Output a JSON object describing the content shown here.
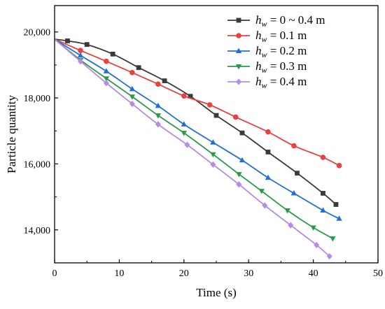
{
  "chart_data": {
    "type": "line",
    "title": "",
    "xlabel": "Time (s)",
    "ylabel": "Particle quantity",
    "xlim": [
      0,
      50
    ],
    "ylim": [
      13000,
      20800
    ],
    "x_ticks": [
      "0",
      "10",
      "20",
      "30",
      "40",
      "50"
    ],
    "x_tick_values": [
      0,
      10,
      20,
      30,
      40,
      50
    ],
    "y_ticks": [
      "14,000",
      "16,000",
      "18,000",
      "20,000"
    ],
    "y_tick_values": [
      14000,
      16000,
      18000,
      20000
    ],
    "grid": false,
    "legend_position": "top-right",
    "series": [
      {
        "name": "0 ~ 0.4 m",
        "legend_var": "h",
        "legend_sub": "w",
        "legend_eq": " =  ",
        "color": "#3a3a3a",
        "marker": "square",
        "x": [
          0,
          2,
          5,
          9,
          13,
          17,
          21,
          25,
          29,
          33,
          37.5,
          41.5,
          43.5
        ],
        "y": [
          19780,
          19730,
          19620,
          19330,
          18920,
          18520,
          18050,
          17470,
          16940,
          16360,
          15720,
          15110,
          14770
        ]
      },
      {
        "name": "0.1 m",
        "legend_var": "h",
        "legend_sub": "w",
        "legend_eq": " =  ",
        "color": "#e8423f",
        "marker": "circle",
        "x": [
          0,
          4,
          8,
          12,
          16,
          20,
          24,
          28,
          33,
          37,
          41.5,
          44
        ],
        "y": [
          19780,
          19440,
          19110,
          18770,
          18420,
          18060,
          17790,
          17420,
          16970,
          16550,
          16200,
          15950
        ]
      },
      {
        "name": "0.2 m",
        "legend_var": "h",
        "legend_sub": "w",
        "legend_eq": " =  ",
        "color": "#1f6fd6",
        "marker": "triangle-up",
        "x": [
          0,
          4,
          8,
          12,
          16,
          20,
          24.5,
          29,
          33,
          37,
          41.5,
          44
        ],
        "y": [
          19780,
          19290,
          18810,
          18270,
          17760,
          17200,
          16650,
          16110,
          15580,
          15110,
          14590,
          14340
        ]
      },
      {
        "name": "0.3 m",
        "legend_var": "h",
        "legend_sub": "w",
        "legend_eq": " =  ",
        "color": "#2a9a48",
        "marker": "triangle-down",
        "x": [
          0,
          4,
          8,
          12,
          16,
          20,
          24.5,
          28.5,
          32,
          36,
          40,
          43
        ],
        "y": [
          19780,
          19150,
          18590,
          18040,
          17470,
          16940,
          16290,
          15690,
          15180,
          14590,
          14070,
          13740
        ]
      },
      {
        "name": "0.4 m",
        "legend_var": "h",
        "legend_sub": "w",
        "legend_eq": " =  ",
        "color": "#b48be6",
        "marker": "diamond",
        "x": [
          0,
          4,
          8,
          12,
          16,
          20.5,
          24.5,
          28.5,
          32.5,
          36.5,
          40.5,
          42.5
        ],
        "y": [
          19780,
          19110,
          18450,
          17820,
          17200,
          16580,
          15980,
          15380,
          14740,
          14140,
          13540,
          13200
        ]
      }
    ]
  }
}
